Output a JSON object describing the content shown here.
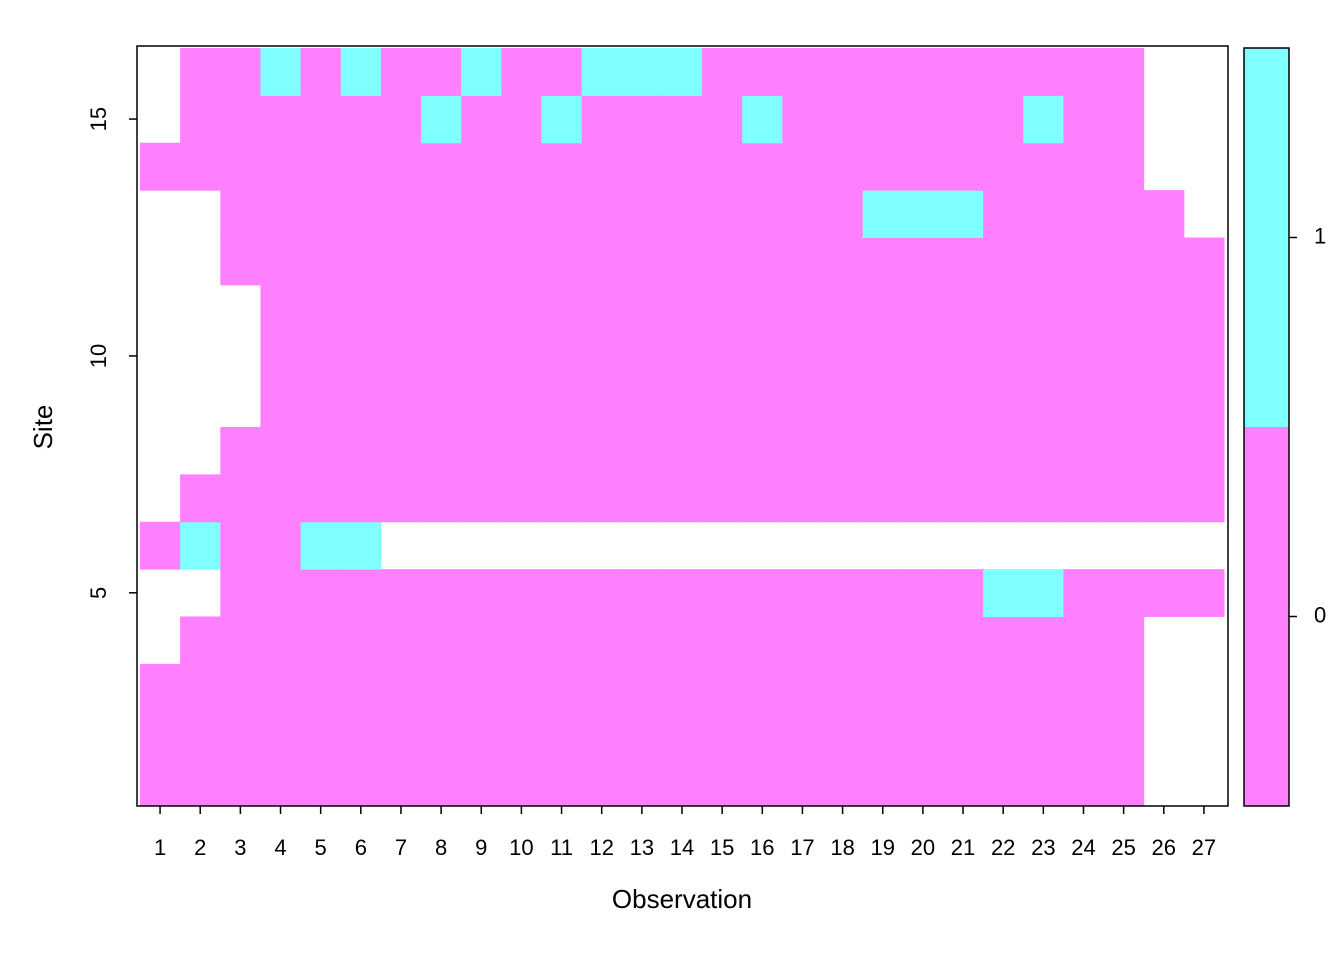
{
  "chart_data": {
    "type": "heatmap",
    "xlabel": "Observation",
    "ylabel": "Site",
    "x": [
      1,
      2,
      3,
      4,
      5,
      6,
      7,
      8,
      9,
      10,
      11,
      12,
      13,
      14,
      15,
      16,
      17,
      18,
      19,
      20,
      21,
      22,
      23,
      24,
      25,
      26,
      27
    ],
    "y": [
      1,
      2,
      3,
      4,
      5,
      6,
      7,
      8,
      9,
      10,
      11,
      12,
      13,
      14,
      15,
      16
    ],
    "xlim": [
      0.5,
      27.5
    ],
    "ylim": [
      0.5,
      16.5
    ],
    "xticks": [
      1,
      2,
      3,
      4,
      5,
      6,
      7,
      8,
      9,
      10,
      11,
      12,
      13,
      14,
      15,
      16,
      17,
      18,
      19,
      20,
      21,
      22,
      23,
      24,
      25,
      26,
      27
    ],
    "yticks": [
      5,
      10,
      15
    ],
    "z": [
      [
        0,
        0,
        0,
        0,
        0,
        0,
        0,
        0,
        0,
        0,
        0,
        0,
        0,
        0,
        0,
        0,
        0,
        0,
        0,
        0,
        0,
        0,
        0,
        0,
        0,
        null,
        null
      ],
      [
        0,
        0,
        0,
        0,
        0,
        0,
        0,
        0,
        0,
        0,
        0,
        0,
        0,
        0,
        0,
        0,
        0,
        0,
        0,
        0,
        0,
        0,
        0,
        0,
        0,
        null,
        null
      ],
      [
        0,
        0,
        0,
        0,
        0,
        0,
        0,
        0,
        0,
        0,
        0,
        0,
        0,
        0,
        0,
        0,
        0,
        0,
        0,
        0,
        0,
        0,
        0,
        0,
        0,
        null,
        null
      ],
      [
        null,
        0,
        0,
        0,
        0,
        0,
        0,
        0,
        0,
        0,
        0,
        0,
        0,
        0,
        0,
        0,
        0,
        0,
        0,
        0,
        0,
        0,
        0,
        0,
        0,
        null,
        null
      ],
      [
        null,
        null,
        0,
        0,
        0,
        0,
        0,
        0,
        0,
        0,
        0,
        0,
        0,
        0,
        0,
        0,
        0,
        0,
        0,
        0,
        0,
        1,
        1,
        0,
        0,
        0,
        0
      ],
      [
        0,
        1,
        0,
        0,
        1,
        1,
        null,
        null,
        null,
        null,
        null,
        null,
        null,
        null,
        null,
        null,
        null,
        null,
        null,
        null,
        null,
        null,
        null,
        null,
        null,
        null,
        null
      ],
      [
        null,
        0,
        0,
        0,
        0,
        0,
        0,
        0,
        0,
        0,
        0,
        0,
        0,
        0,
        0,
        0,
        0,
        0,
        0,
        0,
        0,
        0,
        0,
        0,
        0,
        0,
        0
      ],
      [
        null,
        null,
        0,
        0,
        0,
        0,
        0,
        0,
        0,
        0,
        0,
        0,
        0,
        0,
        0,
        0,
        0,
        0,
        0,
        0,
        0,
        0,
        0,
        0,
        0,
        0,
        0
      ],
      [
        null,
        null,
        null,
        0,
        0,
        0,
        0,
        0,
        0,
        0,
        0,
        0,
        0,
        0,
        0,
        0,
        0,
        0,
        0,
        0,
        0,
        0,
        0,
        0,
        0,
        0,
        0
      ],
      [
        null,
        null,
        null,
        0,
        0,
        0,
        0,
        0,
        0,
        0,
        0,
        0,
        0,
        0,
        0,
        0,
        0,
        0,
        0,
        0,
        0,
        0,
        0,
        0,
        0,
        0,
        0
      ],
      [
        null,
        null,
        null,
        0,
        0,
        0,
        0,
        0,
        0,
        0,
        0,
        0,
        0,
        0,
        0,
        0,
        0,
        0,
        0,
        0,
        0,
        0,
        0,
        0,
        0,
        0,
        0
      ],
      [
        null,
        null,
        0,
        0,
        0,
        0,
        0,
        0,
        0,
        0,
        0,
        0,
        0,
        0,
        0,
        0,
        0,
        0,
        0,
        0,
        0,
        0,
        0,
        0,
        0,
        0,
        0
      ],
      [
        null,
        null,
        0,
        0,
        0,
        0,
        0,
        0,
        0,
        0,
        0,
        0,
        0,
        0,
        0,
        0,
        0,
        0,
        1,
        1,
        1,
        0,
        0,
        0,
        0,
        0,
        null
      ],
      [
        0,
        0,
        0,
        0,
        0,
        0,
        0,
        0,
        0,
        0,
        0,
        0,
        0,
        0,
        0,
        0,
        0,
        0,
        0,
        0,
        0,
        0,
        0,
        0,
        0,
        null,
        null
      ],
      [
        null,
        0,
        0,
        0,
        0,
        0,
        0,
        1,
        0,
        0,
        1,
        0,
        0,
        0,
        0,
        1,
        0,
        0,
        0,
        0,
        0,
        0,
        1,
        0,
        0,
        null,
        null
      ],
      [
        null,
        0,
        0,
        1,
        0,
        1,
        0,
        0,
        1,
        0,
        0,
        1,
        1,
        1,
        0,
        0,
        0,
        0,
        0,
        0,
        0,
        0,
        0,
        0,
        0,
        null,
        null
      ]
    ],
    "colorbar": {
      "breaks": [
        -0.5,
        0.5,
        1.5
      ],
      "colors": [
        "#ff80ff",
        "#80ffff"
      ],
      "ticks": [
        0,
        1
      ]
    }
  }
}
